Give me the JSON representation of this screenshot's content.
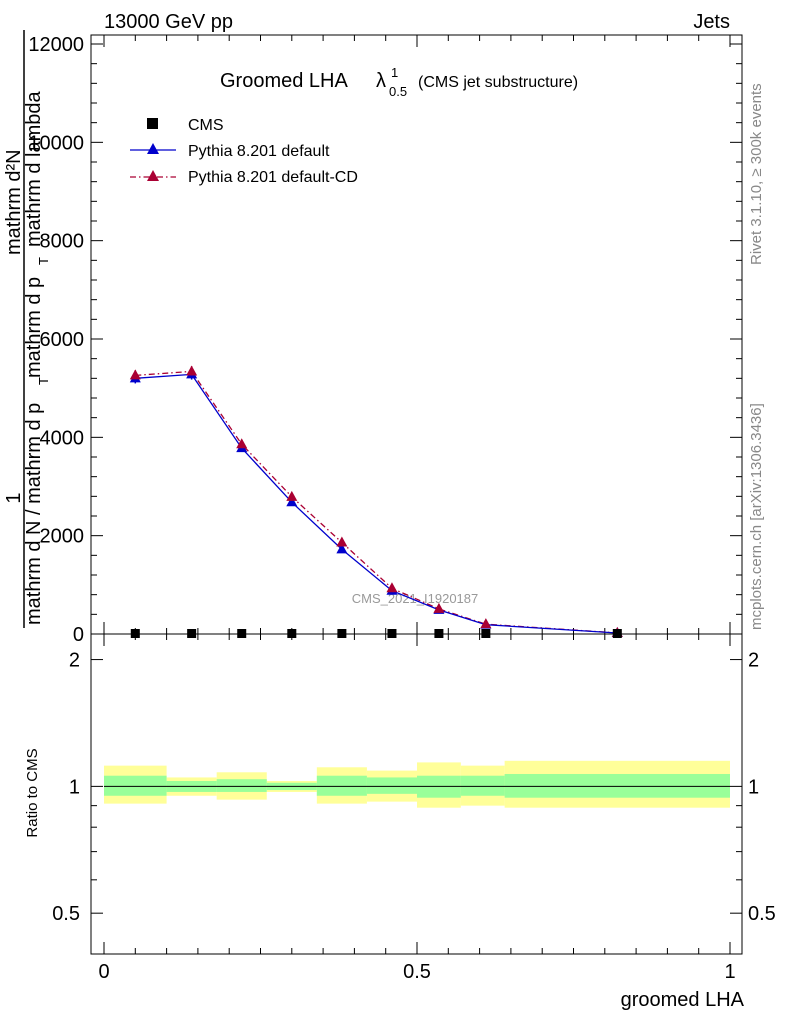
{
  "header": {
    "beam": "13000 GeV pp",
    "process": "Jets",
    "rivet_label": "Rivet 3.1.10, ≥ 300k events",
    "mcplots_label": "mcplots.cern.ch [arXiv:1306.3436]",
    "watermark": "CMS_2021_I1920187"
  },
  "main_plot": {
    "title_main": "Groomed LHA",
    "title_lambda": "λ",
    "title_sub": "0.5",
    "title_sup": "1",
    "title_note": "(CMS jet substructure)",
    "y_label_1": "1",
    "y_label_num": "mathrm d²N",
    "y_label_den": "mathrm d p",
    "y_label_den_sub": "T",
    "y_label_den_rest": "mathrm d lambda",
    "y_label_lhs": "mathrm d N / mathrm d p",
    "y_label_lhs_sub": "T",
    "y_ticks": [
      "0",
      "2000",
      "4000",
      "6000",
      "8000",
      "10000",
      "12000"
    ]
  },
  "legend": {
    "entries": [
      {
        "label": "CMS",
        "color": "#000000",
        "marker": "square",
        "style": "none"
      },
      {
        "label": "Pythia 8.201 default",
        "color": "#0000cc",
        "marker": "triangle",
        "style": "solid"
      },
      {
        "label": "Pythia 8.201 default-CD",
        "color": "#aa0033",
        "marker": "triangle",
        "style": "dashdot"
      }
    ]
  },
  "ratio_plot": {
    "y_label": "Ratio to CMS",
    "y_ticks": [
      "0.5",
      "1",
      "2"
    ],
    "x_ticks": [
      "0",
      "0.5",
      "1"
    ],
    "x_label": "groomed LHA"
  },
  "chart_data": [
    {
      "type": "line",
      "panel": "main",
      "xlim": [
        0,
        1
      ],
      "ylim": [
        0,
        12000
      ],
      "x": [
        0.05,
        0.14,
        0.22,
        0.3,
        0.38,
        0.46,
        0.535,
        0.61,
        0.82
      ],
      "series": [
        {
          "name": "CMS",
          "values": [
            0,
            0,
            0,
            0,
            0,
            0,
            0,
            0,
            0
          ]
        },
        {
          "name": "Pythia 8.201 default",
          "values": [
            5200,
            5280,
            3780,
            2680,
            1720,
            880,
            490,
            190,
            20
          ]
        },
        {
          "name": "Pythia 8.201 default-CD",
          "values": [
            5260,
            5340,
            3860,
            2790,
            1860,
            930,
            510,
            200,
            22
          ]
        }
      ]
    },
    {
      "type": "area",
      "panel": "ratio",
      "xlim": [
        0,
        1
      ],
      "ylim": [
        0.4,
        2.3
      ],
      "y_scale": "log",
      "bins": [
        {
          "x": [
            0.0,
            0.1
          ],
          "inner": [
            0.95,
            1.06
          ],
          "outer": [
            0.91,
            1.12
          ]
        },
        {
          "x": [
            0.1,
            0.18
          ],
          "inner": [
            0.97,
            1.03
          ],
          "outer": [
            0.95,
            1.05
          ]
        },
        {
          "x": [
            0.18,
            0.26
          ],
          "inner": [
            0.97,
            1.04
          ],
          "outer": [
            0.93,
            1.08
          ]
        },
        {
          "x": [
            0.26,
            0.34
          ],
          "inner": [
            0.98,
            1.02
          ],
          "outer": [
            0.97,
            1.03
          ]
        },
        {
          "x": [
            0.34,
            0.42
          ],
          "inner": [
            0.95,
            1.06
          ],
          "outer": [
            0.91,
            1.11
          ]
        },
        {
          "x": [
            0.42,
            0.5
          ],
          "inner": [
            0.96,
            1.05
          ],
          "outer": [
            0.92,
            1.09
          ]
        },
        {
          "x": [
            0.5,
            0.57
          ],
          "inner": [
            0.94,
            1.06
          ],
          "outer": [
            0.89,
            1.14
          ]
        },
        {
          "x": [
            0.57,
            0.64
          ],
          "inner": [
            0.95,
            1.06
          ],
          "outer": [
            0.9,
            1.12
          ]
        },
        {
          "x": [
            0.64,
            1.0
          ],
          "inner": [
            0.94,
            1.07
          ],
          "outer": [
            0.89,
            1.15
          ]
        }
      ]
    }
  ]
}
